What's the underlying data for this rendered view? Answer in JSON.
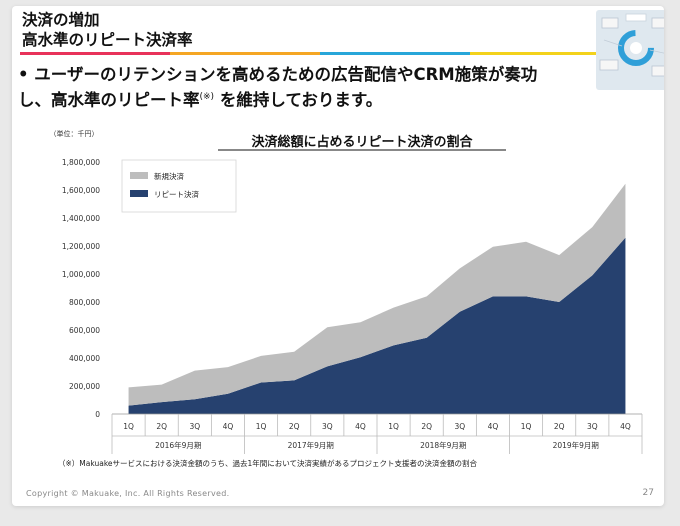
{
  "slide": {
    "title_line1": "決済の増加",
    "title_line2": "高水準のリピート決済率",
    "bullet_line1": "• ユーザーのリテンションを高めるための広告配信やCRM施策が奏功",
    "bullet_line2_a": "し、高水準のリピート率",
    "bullet_note": "(※)",
    "bullet_line2_b": "を維持しております。",
    "footnote": "（※）Makuakeサービスにおける決済金額のうち、過去1年間において決済実績があるプロジェクト支援者の決済金額の割合",
    "copyright": "Copyright © Makuake, Inc. All Rights Reserved.",
    "page_number": "27",
    "rule_colors": [
      "#e8325a",
      "#f5a623",
      "#27a6d9",
      "#f3d21b"
    ]
  },
  "chart_data": {
    "type": "area",
    "stacked": true,
    "title": "決済総額に占めるリピート決済の割合",
    "unit_label": "（単位：千円）",
    "x": [
      "1Q",
      "2Q",
      "3Q",
      "4Q",
      "1Q",
      "2Q",
      "3Q",
      "4Q",
      "1Q",
      "2Q",
      "3Q",
      "4Q",
      "1Q",
      "2Q",
      "3Q",
      "4Q"
    ],
    "groups": [
      {
        "label": "2016年9月期",
        "count": 4
      },
      {
        "label": "2017年9月期",
        "count": 4
      },
      {
        "label": "2018年9月期",
        "count": 4
      },
      {
        "label": "2019年9月期",
        "count": 4
      }
    ],
    "series": [
      {
        "name": "リピート決済",
        "color": "#26416f",
        "values": [
          60000,
          85000,
          105000,
          145000,
          225000,
          240000,
          340000,
          405000,
          490000,
          545000,
          730000,
          840000,
          840000,
          800000,
          990000,
          1260000
        ]
      },
      {
        "name": "新規決済",
        "color": "#bdbdbd",
        "values": [
          130000,
          125000,
          205000,
          190000,
          190000,
          205000,
          280000,
          250000,
          270000,
          295000,
          310000,
          355000,
          390000,
          335000,
          345000,
          385000
        ]
      }
    ],
    "ylim": [
      0,
      1800000
    ],
    "yticks": [
      0,
      200000,
      400000,
      600000,
      800000,
      1000000,
      1200000,
      1400000,
      1600000,
      1800000
    ],
    "ytick_labels": [
      "0",
      "200,000",
      "400,000",
      "600,000",
      "800,000",
      "1,000,000",
      "1,200,000",
      "1,400,000",
      "1,600,000",
      "1,800,000"
    ],
    "legend_position": "top-left",
    "legend_order": [
      "新規決済",
      "リピート決済"
    ],
    "grid": false
  }
}
